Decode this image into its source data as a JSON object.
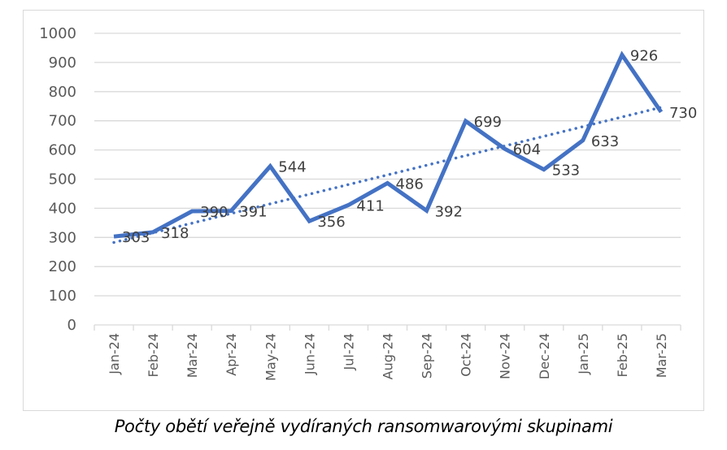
{
  "caption": "Počty obětí veřejně vydíraných ransomwarovými skupinami",
  "colors": {
    "series": "#4472C4",
    "trendline": "#4472C4",
    "gridline": "#d9d9d9",
    "axis_text": "#595959",
    "frame": "#d9d9d9"
  },
  "chart_data": {
    "type": "line",
    "title": "",
    "caption": "Počty obětí veřejně vydíraných ransomwarovými skupinami",
    "xlabel": "",
    "ylabel": "",
    "ylim": [
      0,
      1000
    ],
    "yticks": [
      0,
      100,
      200,
      300,
      400,
      500,
      600,
      700,
      800,
      900,
      1000
    ],
    "grid": true,
    "legend": "none",
    "categories": [
      "Jan-24",
      "Feb-24",
      "Mar-24",
      "Apr-24",
      "May-24",
      "Jun-24",
      "Jul-24",
      "Aug-24",
      "Sep-24",
      "Oct-24",
      "Nov-24",
      "Dec-24",
      "Jan-25",
      "Feb-25",
      "Mar-25"
    ],
    "series": [
      {
        "name": "Počty obětí",
        "values": [
          303,
          318,
          390,
          391,
          544,
          356,
          411,
          486,
          392,
          699,
          604,
          533,
          633,
          926,
          730
        ],
        "style": "solid",
        "data_labels": true,
        "label_position": "right"
      },
      {
        "name": "Linear trendline",
        "type": "linear-trend",
        "style": "dotted"
      }
    ]
  }
}
